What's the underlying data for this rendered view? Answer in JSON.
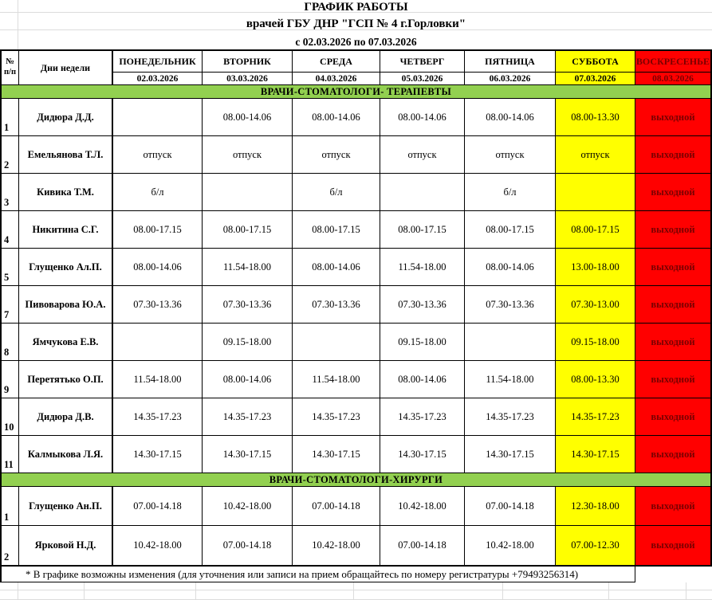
{
  "page": {
    "title_line1": "ГРАФИК РАБОТЫ",
    "title_line2": "врачей ГБУ ДНР \"ГСП № 4 г.Горловки\"",
    "period": "с 02.03.2026 по 07.03.2026",
    "footer_note": "* В графике возможны изменения (для уточнения или записи на прием обращайтесь по номеру регистратуры +79493256314)"
  },
  "table": {
    "corner": {
      "line1": "№",
      "line2": "п/п"
    },
    "days_label": "Дни недели",
    "days": [
      {
        "name": "ПОНЕДЕЛЬНИК",
        "date": "02.03.2026",
        "kind": "workday"
      },
      {
        "name": "ВТОРНИК",
        "date": "03.03.2026",
        "kind": "workday"
      },
      {
        "name": "СРЕДА",
        "date": "04.03.2026",
        "kind": "workday"
      },
      {
        "name": "ЧЕТВЕРГ",
        "date": "05.03.2026",
        "kind": "workday"
      },
      {
        "name": "ПЯТНИЦА",
        "date": "06.03.2026",
        "kind": "workday"
      },
      {
        "name": "СУББОТА",
        "date": "07.03.2026",
        "kind": "saturday"
      },
      {
        "name": "ВОСКРЕСЕНЬЕ",
        "date": "08.03.2026",
        "kind": "sunday"
      }
    ],
    "day_off_label": "выходной",
    "sections": [
      {
        "title": "ВРАЧИ-СТОМАТОЛОГИ- ТЕРАПЕВТЫ",
        "rows": [
          {
            "num": "1",
            "name": "Дидюра Д.Д.",
            "cells": [
              "",
              "08.00-14.06",
              "08.00-14.06",
              "08.00-14.06",
              "08.00-14.06",
              "08.00-13.30",
              "выходной"
            ]
          },
          {
            "num": "2",
            "name": "Емельянова Т.Л.",
            "cells": [
              "отпуск",
              "отпуск",
              "отпуск",
              "отпуск",
              "отпуск",
              "отпуск",
              "выходной"
            ]
          },
          {
            "num": "3",
            "name": "Кивика Т.М.",
            "cells": [
              "б/л",
              "",
              "б/л",
              "",
              "б/л",
              "",
              "выходной"
            ]
          },
          {
            "num": "4",
            "name": "Никитина С.Г.",
            "cells": [
              "08.00-17.15",
              "08.00-17.15",
              "08.00-17.15",
              "08.00-17.15",
              "08.00-17.15",
              "08.00-17.15",
              "выходной"
            ]
          },
          {
            "num": "5",
            "name": "Глущенко Ал.П.",
            "cells": [
              "08.00-14.06",
              "11.54-18.00",
              "08.00-14.06",
              "11.54-18.00",
              "08.00-14.06",
              "13.00-18.00",
              "выходной"
            ]
          },
          {
            "num": "7",
            "name": "Пивоварова Ю.А.",
            "cells": [
              "07.30-13.36",
              "07.30-13.36",
              "07.30-13.36",
              "07.30-13.36",
              "07.30-13.36",
              "07.30-13.00",
              "выходной"
            ]
          },
          {
            "num": "8",
            "name": "Ямчукова Е.В.",
            "cells": [
              "",
              "09.15-18.00",
              "",
              "09.15-18.00",
              "",
              "09.15-18.00",
              "выходной"
            ]
          },
          {
            "num": "9",
            "name": "Перетятько О.П.",
            "cells": [
              "11.54-18.00",
              "08.00-14.06",
              "11.54-18.00",
              "08.00-14.06",
              "11.54-18.00",
              "08.00-13.30",
              "выходной"
            ]
          },
          {
            "num": "10",
            "name": "Дидюра Д.В.",
            "cells": [
              "14.35-17.23",
              "14.35-17.23",
              "14.35-17.23",
              "14.35-17.23",
              "14.35-17.23",
              "14.35-17.23",
              "выходной"
            ]
          },
          {
            "num": "11",
            "name": "Калмыкова Л.Я.",
            "cells": [
              "14.30-17.15",
              "14.30-17.15",
              "14.30-17.15",
              "14.30-17.15",
              "14.30-17.15",
              "14.30-17.15",
              "выходной"
            ]
          }
        ]
      },
      {
        "title": "ВРАЧИ-СТОМАТОЛОГИ-ХИРУРГИ",
        "rows": [
          {
            "num": "1",
            "name": "Глущенко Ан.П.",
            "cells": [
              "07.00-14.18",
              "10.42-18.00",
              "07.00-14.18",
              "10.42-18.00",
              "07.00-14.18",
              "12.30-18.00",
              "выходной"
            ]
          },
          {
            "num": "2",
            "name": "Ярковой Н.Д.",
            "cells": [
              "10.42-18.00",
              "07.00-14.18",
              "10.42-18.00",
              "07.00-14.18",
              "10.42-18.00",
              "07.00-12.30",
              "выходной"
            ]
          }
        ]
      }
    ]
  },
  "colors": {
    "saturday_bg": "#ffff00",
    "sunday_bg": "#ff0000",
    "section_band_bg": "#92d050",
    "day_off_text": "#7b0000"
  }
}
